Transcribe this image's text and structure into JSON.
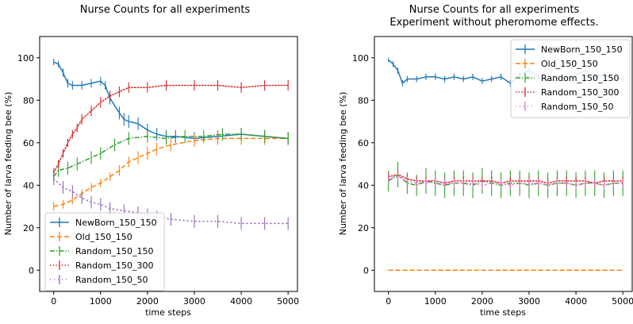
{
  "chart_data": [
    {
      "type": "line",
      "title": "Nurse Counts for all experiments",
      "subtitle": "",
      "xlabel": "time steps",
      "ylabel": "Number of larva feeding bee (%)",
      "xlim": [
        -300,
        5200
      ],
      "ylim": [
        -10,
        110
      ],
      "xticks": [
        0,
        1000,
        2000,
        3000,
        4000,
        5000
      ],
      "yticks": [
        0,
        20,
        40,
        60,
        80,
        100
      ],
      "error_bars": true,
      "legend_position": "lower-left",
      "series": [
        {
          "name": "NewBorn_150_150",
          "color": "#1f77b4",
          "style": "solid",
          "x": [
            0,
            100,
            200,
            300,
            400,
            600,
            800,
            1000,
            1100,
            1200,
            1400,
            1500,
            1600,
            1800,
            2000,
            2200,
            2400,
            2600,
            3000,
            3500,
            4000,
            4500,
            5000
          ],
          "values": [
            98,
            97,
            93,
            88,
            87,
            87,
            88,
            89,
            87,
            81,
            74,
            71,
            70,
            69,
            66,
            64,
            63,
            63,
            62,
            63,
            64,
            63,
            62
          ],
          "errors": [
            1.5,
            1.5,
            2,
            2,
            2,
            2,
            2,
            2,
            2,
            3,
            3,
            3,
            3,
            3,
            3,
            3,
            3,
            3,
            3,
            3,
            3,
            3,
            3
          ]
        },
        {
          "name": "Old_150_150",
          "color": "#ff7f0e",
          "style": "dashed",
          "x": [
            0,
            200,
            400,
            600,
            800,
            1000,
            1200,
            1400,
            1600,
            1800,
            2000,
            2200,
            2500,
            3000,
            3500,
            4000,
            4500,
            5000
          ],
          "values": [
            30,
            31,
            33,
            36,
            39,
            41,
            44,
            47,
            51,
            53,
            55,
            57,
            59,
            61,
            62,
            62,
            62,
            62
          ],
          "errors": [
            2,
            2,
            2,
            2,
            2,
            2,
            2,
            2.5,
            2.5,
            3,
            3,
            3,
            3,
            3,
            3,
            3,
            3,
            3
          ]
        },
        {
          "name": "Random_150_150",
          "color": "#2ca02c",
          "style": "dashdot",
          "x": [
            0,
            100,
            300,
            500,
            800,
            1000,
            1300,
            1600,
            2000,
            2400,
            2800,
            3200,
            3600,
            4000,
            4500,
            5000
          ],
          "values": [
            44,
            47,
            48,
            50,
            53,
            55,
            59,
            62,
            63,
            62,
            63,
            63,
            64,
            64,
            63,
            62
          ],
          "errors": [
            2.5,
            3,
            3,
            3,
            3,
            3,
            3,
            3,
            3,
            3,
            3,
            3,
            3,
            3,
            3,
            3
          ]
        },
        {
          "name": "Random_150_300",
          "color": "#d62728",
          "style": "dotted",
          "x": [
            0,
            100,
            200,
            300,
            400,
            500,
            600,
            800,
            1000,
            1200,
            1400,
            1600,
            2000,
            2400,
            3000,
            3500,
            4000,
            4500,
            5000
          ],
          "values": [
            46,
            50,
            55,
            60,
            64,
            67,
            71,
            75,
            79,
            82,
            84,
            86,
            86,
            87,
            87,
            87,
            86,
            87,
            87
          ],
          "errors": [
            2,
            2,
            2,
            2,
            2,
            2,
            2.5,
            2.5,
            2.5,
            2.5,
            2.5,
            2.5,
            2.5,
            2.5,
            2.5,
            2.5,
            2.5,
            2.5,
            2.5
          ]
        },
        {
          "name": "Random_150_50",
          "color": "#9467bd",
          "style": "dots",
          "x": [
            0,
            200,
            400,
            600,
            800,
            1000,
            1200,
            1500,
            1800,
            2000,
            2200,
            2500,
            3000,
            3500,
            4000,
            4500,
            5000
          ],
          "values": [
            43,
            39,
            37,
            34,
            32,
            31,
            29,
            28,
            27,
            26,
            25,
            24,
            23,
            23,
            22,
            22,
            22
          ],
          "errors": [
            3,
            3,
            3,
            3,
            3,
            3,
            3,
            3,
            3,
            3,
            3,
            3,
            3,
            3,
            3,
            3,
            3
          ]
        }
      ]
    },
    {
      "type": "line",
      "title": "Nurse Counts for all experiments",
      "subtitle": "Experiment without pheromome effects.",
      "xlabel": "time steps",
      "ylabel": "Number of larva feeding bee (%)",
      "xlim": [
        -300,
        5200
      ],
      "ylim": [
        -10,
        110
      ],
      "xticks": [
        0,
        1000,
        2000,
        3000,
        4000,
        5000
      ],
      "yticks": [
        0,
        20,
        40,
        60,
        80,
        100
      ],
      "error_bars": true,
      "legend_position": "top-right",
      "series": [
        {
          "name": "NewBorn_150_150",
          "color": "#1f77b4",
          "style": "solid",
          "x": [
            0,
            100,
            200,
            300,
            400,
            600,
            800,
            1000,
            1200,
            1400,
            1600,
            1800,
            2000,
            2200,
            2400,
            2600,
            2800,
            3000,
            3200,
            3400,
            3600,
            3800,
            4000,
            4200,
            4400,
            4600,
            4800,
            5000
          ],
          "values": [
            99,
            97,
            94,
            88,
            90,
            90,
            91,
            91,
            90,
            91,
            90,
            91,
            89,
            90,
            91,
            88,
            92,
            94,
            91,
            89,
            90,
            91,
            92,
            94,
            91,
            92,
            90,
            90
          ],
          "errors": [
            1,
            1.5,
            1.5,
            1.5,
            1.5,
            1.5,
            1.5,
            1.5,
            1.5,
            1.5,
            1.5,
            1.5,
            1.5,
            1.5,
            1.5,
            1.5,
            1.5,
            1.5,
            1.5,
            1.5,
            1.5,
            1.5,
            1.5,
            1.5,
            1.5,
            1.5,
            1.5,
            1.5
          ]
        },
        {
          "name": "Old_150_150",
          "color": "#ff7f0e",
          "style": "dashed",
          "x": [
            0,
            5000
          ],
          "values": [
            0,
            0
          ],
          "errors": [
            0,
            0
          ]
        },
        {
          "name": "Random_150_150",
          "color": "#2ca02c",
          "style": "dashdot",
          "x": [
            0,
            200,
            400,
            600,
            800,
            1000,
            1200,
            1400,
            1600,
            1800,
            2000,
            2200,
            2400,
            2600,
            2800,
            3000,
            3200,
            3400,
            3600,
            3800,
            4000,
            4200,
            4400,
            4600,
            4800,
            5000
          ],
          "values": [
            42,
            45,
            41,
            40,
            42,
            41,
            40,
            41,
            41,
            40,
            42,
            41,
            40,
            41,
            41,
            40,
            41,
            40,
            41,
            41,
            40,
            41,
            41,
            40,
            41,
            41
          ],
          "errors": [
            5,
            6,
            5,
            5,
            6,
            6,
            6,
            6,
            6,
            6,
            6,
            6,
            6,
            6,
            6,
            6,
            6,
            6,
            6,
            6,
            6,
            6,
            6,
            6,
            6,
            6
          ]
        },
        {
          "name": "Random_150_300",
          "color": "#d62728",
          "style": "dotted",
          "x": [
            0,
            200,
            400,
            600,
            800,
            1000,
            1200,
            1400,
            1600,
            1800,
            2000,
            2200,
            2400,
            2600,
            2800,
            3000,
            3200,
            3400,
            3600,
            3800,
            4000,
            4200,
            4400,
            4600,
            4800,
            5000
          ],
          "values": [
            44,
            45,
            43,
            42,
            42,
            42,
            41,
            42,
            42,
            42,
            42,
            42,
            41,
            42,
            42,
            42,
            42,
            41,
            42,
            42,
            42,
            42,
            41,
            42,
            42,
            42
          ],
          "errors": [
            2,
            2,
            2,
            2,
            2,
            2,
            2,
            2,
            2,
            2,
            2,
            2,
            2,
            2,
            2,
            2,
            2,
            2,
            2,
            2,
            2,
            2,
            2,
            2,
            2,
            2
          ]
        },
        {
          "name": "Random_150_50",
          "color": "#e377c2",
          "style": "dots",
          "x": [
            0,
            200,
            400,
            600,
            800,
            1000,
            1200,
            1400,
            1600,
            1800,
            2000,
            2200,
            2400,
            2600,
            2800,
            3000,
            3200,
            3400,
            3600,
            3800,
            4000,
            4200,
            4400,
            4600,
            4800,
            5000
          ],
          "values": [
            43,
            44,
            42,
            41,
            41,
            42,
            41,
            41,
            41,
            41,
            40,
            41,
            41,
            40,
            41,
            41,
            41,
            40,
            41,
            41,
            40,
            41,
            41,
            40,
            41,
            41
          ],
          "errors": [
            2,
            2,
            2,
            2,
            2,
            2,
            2,
            2,
            2,
            2,
            2,
            2,
            2,
            2,
            2,
            2,
            2,
            2,
            2,
            2,
            2,
            2,
            2,
            2,
            2,
            2
          ]
        }
      ]
    }
  ]
}
